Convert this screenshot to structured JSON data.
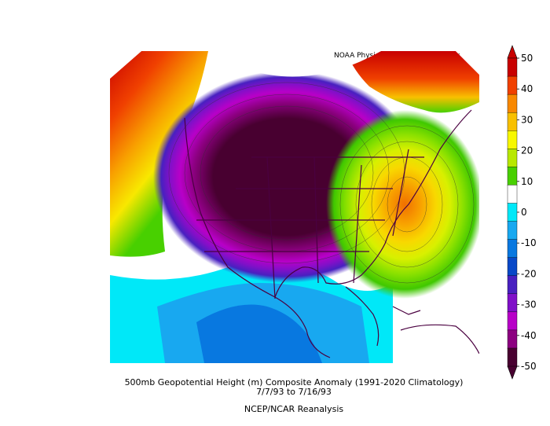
{
  "credit": "NOAA Physical Sciences Laboratory",
  "caption": {
    "line1": "500mb Geopotential Height (m) Composite Anomaly (1991-2020 Climatology)",
    "line2": "7/7/93  to 7/16/93",
    "line3": "NCEP/NCAR Reanalysis"
  },
  "colorbar": {
    "ticks": [
      "50",
      "40",
      "30",
      "20",
      "10",
      "0",
      "-10",
      "-20",
      "-30",
      "-40",
      "-50"
    ],
    "colors": [
      "#c80000",
      "#f04000",
      "#f88800",
      "#f8c000",
      "#f8f800",
      "#b8e800",
      "#48d000",
      "#ffffff",
      "#00e8f8",
      "#18a8f0",
      "#0878e0",
      "#0848c8",
      "#4820c0",
      "#8010c8",
      "#b800c8",
      "#8c0080",
      "#480030"
    ]
  }
}
